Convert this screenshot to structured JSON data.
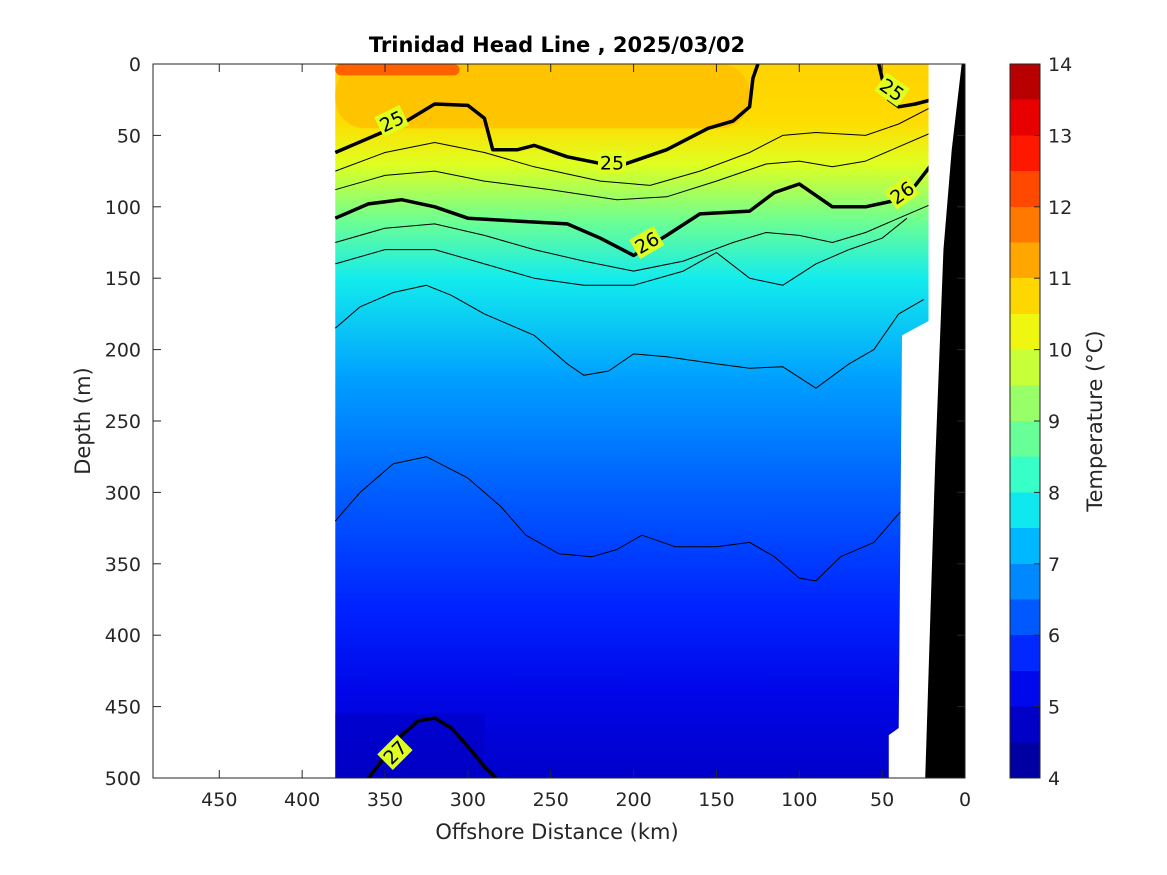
{
  "chart_data": {
    "type": "heatmap",
    "title": "Trinidad Head Line , 2025/03/02",
    "xlabel": "Offshore Distance (km)",
    "ylabel": "Depth (m)",
    "colorbar_label": "Temperature (°C)",
    "xlim": [
      490,
      0
    ],
    "ylim": [
      0,
      500
    ],
    "x_ticks": [
      "450",
      "400",
      "350",
      "300",
      "250",
      "200",
      "150",
      "100",
      "50",
      "0"
    ],
    "y_ticks": [
      "0",
      "50",
      "100",
      "150",
      "200",
      "250",
      "300",
      "350",
      "400",
      "450",
      "500"
    ],
    "colorbar_ticks": [
      "4",
      "5",
      "6",
      "7",
      "8",
      "9",
      "10",
      "11",
      "12",
      "13",
      "14"
    ],
    "colorbar_range": [
      4,
      14
    ],
    "colormap": [
      "#00008f",
      "#0000b4",
      "#0000d9",
      "#0010ff",
      "#0040ff",
      "#0070ff",
      "#00a0ff",
      "#00d0ff",
      "#20ffdf",
      "#50ffaf",
      "#80ff80",
      "#afff50",
      "#dfff20",
      "#ffef00",
      "#ffbf00",
      "#ff8f00",
      "#ff6000",
      "#ff3000",
      "#ff0000",
      "#d00000",
      "#a00000"
    ],
    "data_extent_km": [
      380,
      20
    ],
    "temperature_layers": [
      {
        "depth": 0,
        "temp": 10.8
      },
      {
        "depth": 40,
        "temp": 10.7
      },
      {
        "depth": 70,
        "temp": 10.0
      },
      {
        "depth": 110,
        "temp": 8.8
      },
      {
        "depth": 150,
        "temp": 7.8
      },
      {
        "depth": 220,
        "temp": 7.0
      },
      {
        "depth": 300,
        "temp": 6.3
      },
      {
        "depth": 380,
        "temp": 5.7
      },
      {
        "depth": 440,
        "temp": 5.2
      },
      {
        "depth": 500,
        "temp": 4.8
      }
    ],
    "density_contours": [
      {
        "label": "25",
        "bold": true,
        "points": [
          [
            380,
            62
          ],
          [
            360,
            52
          ],
          [
            340,
            42
          ],
          [
            320,
            28
          ],
          [
            300,
            29
          ],
          [
            290,
            38
          ],
          [
            285,
            60
          ],
          [
            270,
            60
          ],
          [
            260,
            57
          ],
          [
            240,
            65
          ],
          [
            210,
            72
          ],
          [
            180,
            60
          ],
          [
            155,
            45
          ],
          [
            140,
            40
          ],
          [
            130,
            30
          ],
          [
            128,
            10
          ],
          [
            125,
            0
          ]
        ]
      },
      {
        "label": "25",
        "bold": true,
        "points": [
          [
            52,
            0
          ],
          [
            50,
            10
          ],
          [
            46,
            25
          ],
          [
            40,
            30
          ],
          [
            30,
            28
          ],
          [
            20,
            25
          ]
        ]
      },
      {
        "label": "26",
        "bold": true,
        "points": [
          [
            380,
            108
          ],
          [
            360,
            98
          ],
          [
            340,
            95
          ],
          [
            320,
            100
          ],
          [
            300,
            108
          ],
          [
            270,
            110
          ],
          [
            240,
            112
          ],
          [
            220,
            122
          ],
          [
            200,
            134
          ],
          [
            180,
            120
          ],
          [
            160,
            105
          ],
          [
            130,
            103
          ],
          [
            115,
            90
          ],
          [
            100,
            84
          ],
          [
            90,
            92
          ],
          [
            80,
            100
          ],
          [
            60,
            100
          ],
          [
            40,
            95
          ],
          [
            30,
            85
          ],
          [
            20,
            70
          ]
        ]
      },
      {
        "label": "27",
        "bold": true,
        "points": [
          [
            360,
            500
          ],
          [
            350,
            485
          ],
          [
            340,
            470
          ],
          [
            330,
            460
          ],
          [
            320,
            458
          ],
          [
            310,
            465
          ],
          [
            300,
            478
          ],
          [
            290,
            492
          ],
          [
            283,
            500
          ]
        ]
      },
      {
        "label": "",
        "bold": false,
        "points": [
          [
            380,
            75
          ],
          [
            350,
            62
          ],
          [
            320,
            55
          ],
          [
            290,
            62
          ],
          [
            260,
            72
          ],
          [
            220,
            82
          ],
          [
            190,
            85
          ],
          [
            160,
            75
          ],
          [
            130,
            62
          ],
          [
            110,
            50
          ],
          [
            90,
            48
          ],
          [
            60,
            50
          ],
          [
            40,
            42
          ],
          [
            20,
            30
          ]
        ]
      },
      {
        "label": "",
        "bold": false,
        "points": [
          [
            380,
            88
          ],
          [
            350,
            78
          ],
          [
            320,
            75
          ],
          [
            290,
            82
          ],
          [
            250,
            88
          ],
          [
            210,
            95
          ],
          [
            180,
            93
          ],
          [
            150,
            82
          ],
          [
            120,
            70
          ],
          [
            100,
            68
          ],
          [
            80,
            72
          ],
          [
            60,
            68
          ],
          [
            40,
            58
          ],
          [
            20,
            48
          ]
        ]
      },
      {
        "label": "",
        "bold": false,
        "points": [
          [
            380,
            125
          ],
          [
            350,
            115
          ],
          [
            320,
            112
          ],
          [
            290,
            120
          ],
          [
            260,
            130
          ],
          [
            230,
            138
          ],
          [
            200,
            145
          ],
          [
            170,
            138
          ],
          [
            140,
            125
          ],
          [
            120,
            118
          ],
          [
            100,
            120
          ],
          [
            80,
            125
          ],
          [
            60,
            118
          ],
          [
            40,
            108
          ],
          [
            20,
            98
          ]
        ]
      },
      {
        "label": "",
        "bold": false,
        "points": [
          [
            380,
            140
          ],
          [
            350,
            130
          ],
          [
            320,
            130
          ],
          [
            290,
            140
          ],
          [
            260,
            150
          ],
          [
            230,
            155
          ],
          [
            200,
            155
          ],
          [
            170,
            145
          ],
          [
            150,
            132
          ],
          [
            130,
            150
          ],
          [
            110,
            155
          ],
          [
            90,
            140
          ],
          [
            70,
            130
          ],
          [
            50,
            122
          ],
          [
            35,
            108
          ]
        ]
      },
      {
        "label": "",
        "bold": false,
        "points": [
          [
            380,
            185
          ],
          [
            365,
            170
          ],
          [
            345,
            160
          ],
          [
            325,
            155
          ],
          [
            310,
            162
          ],
          [
            290,
            175
          ],
          [
            260,
            190
          ],
          [
            240,
            210
          ],
          [
            230,
            218
          ],
          [
            215,
            215
          ],
          [
            200,
            203
          ],
          [
            180,
            205
          ],
          [
            150,
            210
          ],
          [
            130,
            213
          ],
          [
            110,
            212
          ],
          [
            90,
            227
          ],
          [
            70,
            210
          ],
          [
            55,
            200
          ],
          [
            40,
            175
          ],
          [
            25,
            165
          ]
        ]
      },
      {
        "label": "",
        "bold": false,
        "points": [
          [
            380,
            320
          ],
          [
            365,
            300
          ],
          [
            345,
            280
          ],
          [
            325,
            275
          ],
          [
            300,
            290
          ],
          [
            280,
            310
          ],
          [
            265,
            330
          ],
          [
            245,
            343
          ],
          [
            225,
            345
          ],
          [
            210,
            340
          ],
          [
            195,
            330
          ],
          [
            175,
            338
          ],
          [
            150,
            338
          ],
          [
            130,
            335
          ],
          [
            115,
            345
          ],
          [
            100,
            360
          ],
          [
            90,
            362
          ],
          [
            75,
            345
          ],
          [
            55,
            335
          ],
          [
            40,
            315
          ],
          [
            30,
            305
          ]
        ]
      }
    ],
    "contour_label_positions": [
      {
        "text": "25",
        "x": 346,
        "y": 40,
        "angle": -26
      },
      {
        "text": "25",
        "x": 213,
        "y": 69,
        "angle": 0
      },
      {
        "text": "25",
        "x": 44,
        "y": 18,
        "angle": 35
      },
      {
        "text": "26",
        "x": 192,
        "y": 125,
        "angle": -30
      },
      {
        "text": "26",
        "x": 38,
        "y": 90,
        "angle": -35
      },
      {
        "text": "27",
        "x": 344,
        "y": 482,
        "angle": -45
      }
    ]
  }
}
